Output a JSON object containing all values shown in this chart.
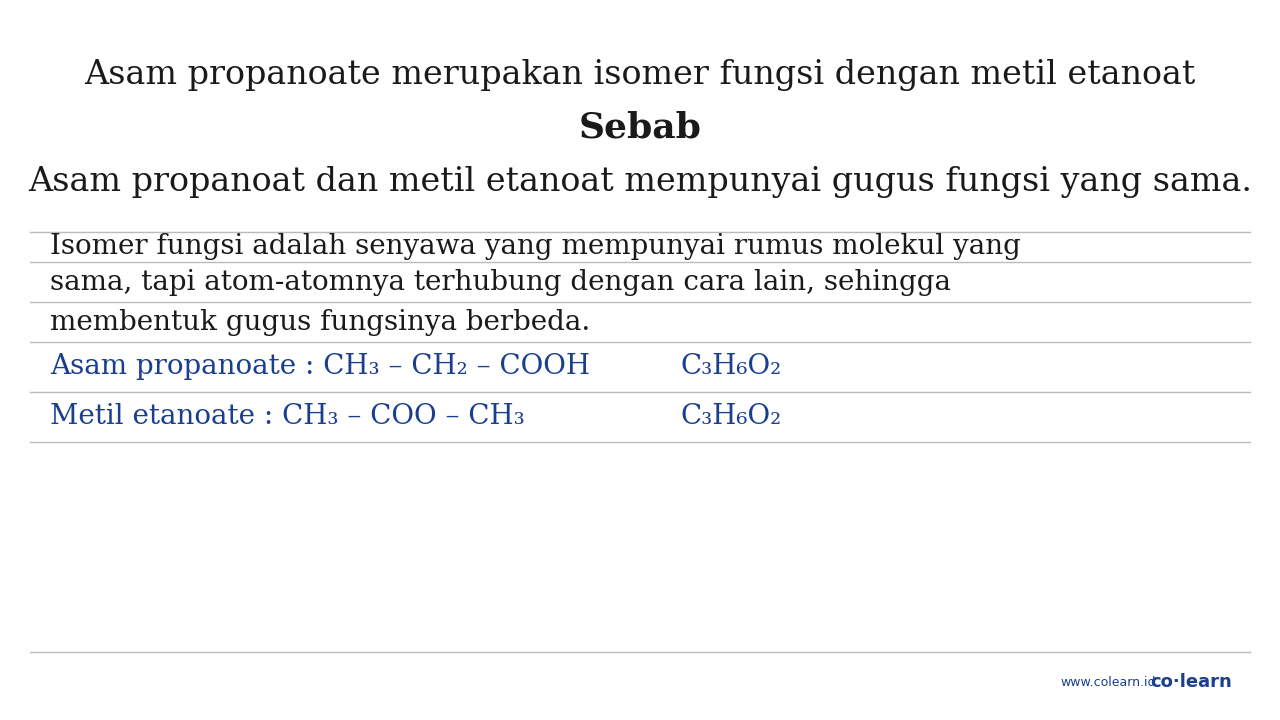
{
  "bg_color": "#ffffff",
  "title": "Asam propanoate merupakan isomer fungsi dengan metil etanoat",
  "sebab": "Sebab",
  "statement": "Asam propanoat dan metil etanoat mempunyai gugus fungsi yang sama.",
  "desc_line1": "Isomer fungsi adalah senyawa yang mempunyai rumus molekul yang",
  "desc_line2": "sama, tapi atom-atomnya terhubung dengan cara lain, sehingga",
  "desc_line3": "membentuk gugus fungsinya berbeda.",
  "blue_color": "#1a3f8f",
  "black_color": "#1a1a1a",
  "watermark_url": "www.colearn.id",
  "watermark_brand": "co·learn",
  "line_color": "#bbbbbb",
  "fig_width": 12.8,
  "fig_height": 7.2,
  "dpi": 100
}
